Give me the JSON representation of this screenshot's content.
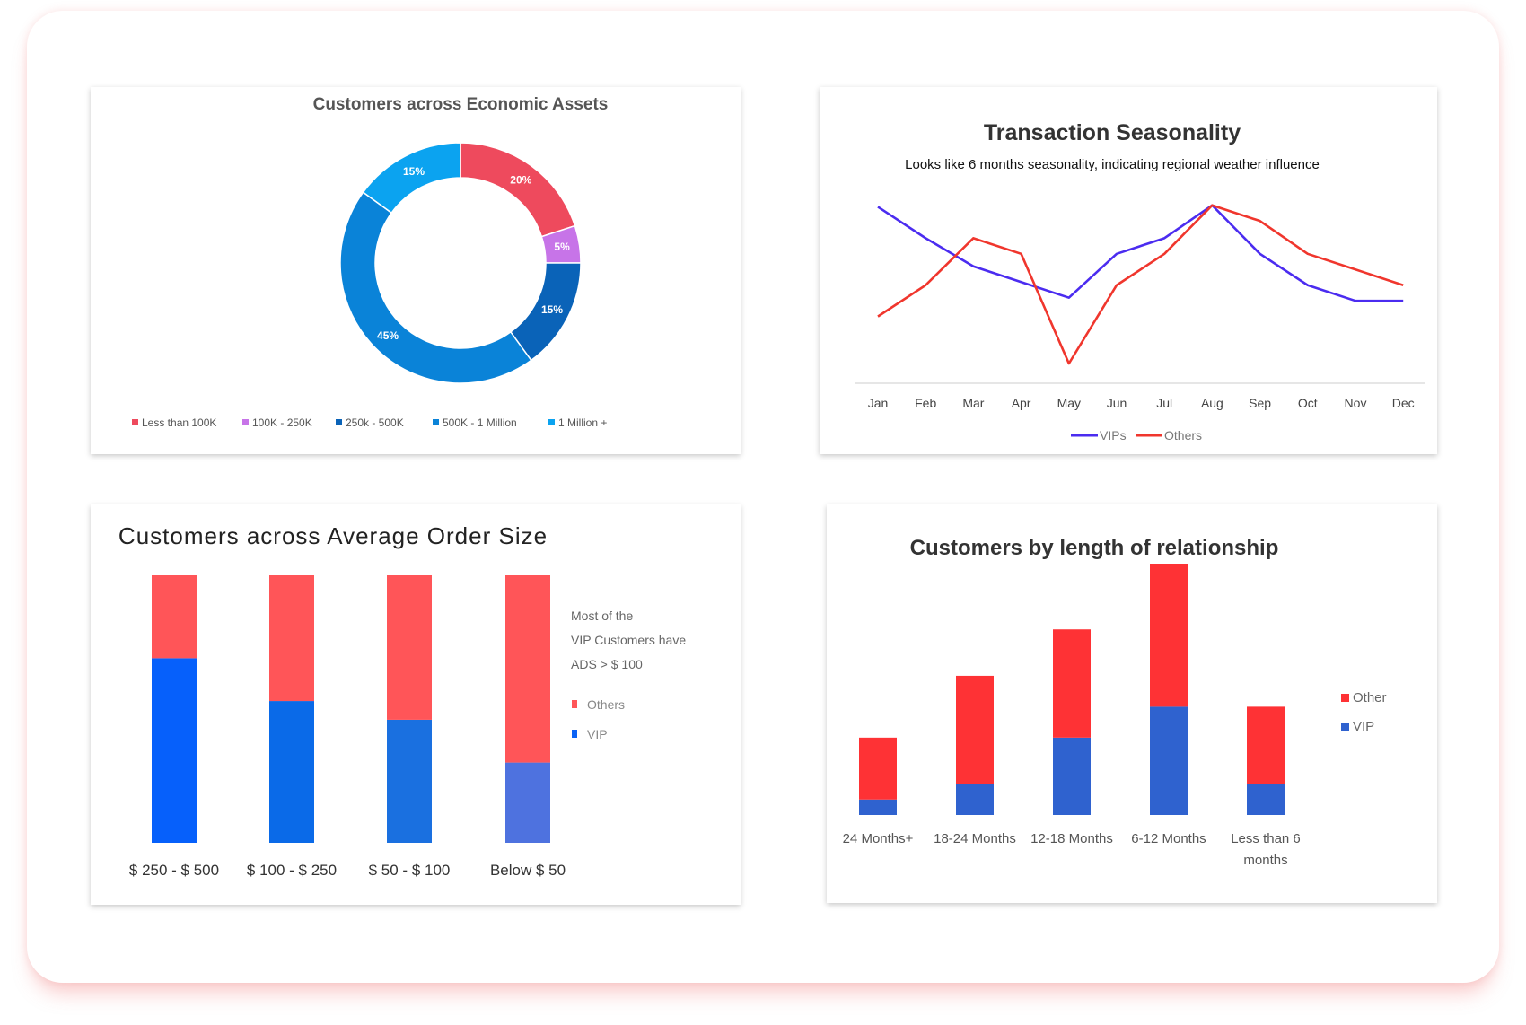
{
  "chart_data": [
    {
      "type": "pie",
      "title": "Customers across Economic Assets",
      "donut": true,
      "categories": [
        "Less than 100K",
        "100K - 250K",
        "250k - 500K",
        "500K - 1 Million",
        "1 Million +"
      ],
      "values": [
        20,
        5,
        15,
        45,
        15
      ],
      "labels": [
        "20%",
        "5%",
        "15%",
        "45%",
        "15%"
      ],
      "colors": [
        "#ee4a5d",
        "#c774e8",
        "#0a63b8",
        "#0a83d8",
        "#0ba3f0"
      ],
      "legend_position": "bottom"
    },
    {
      "type": "line",
      "title": "Transaction Seasonality",
      "subtitle": "Looks like 6 months seasonality, indicating regional weather influence",
      "categories": [
        "Jan",
        "Feb",
        "Mar",
        "Apr",
        "May",
        "Jun",
        "Jul",
        "Aug",
        "Sep",
        "Oct",
        "Nov",
        "Dec"
      ],
      "series": [
        {
          "name": "VIPs",
          "color": "#4b2cf0",
          "values": [
            100,
            80,
            62,
            52,
            42,
            70,
            80,
            101,
            70,
            50,
            40,
            40
          ]
        },
        {
          "name": "Others",
          "color": "#f0362d",
          "values": [
            30,
            50,
            80,
            70,
            0,
            50,
            70,
            101,
            91,
            70,
            60,
            50
          ]
        }
      ],
      "ylim": [
        0,
        110
      ],
      "grid": false,
      "legend_position": "bottom"
    },
    {
      "type": "bar",
      "stacked": true,
      "title": "Customers across Average Order Size",
      "categories": [
        "$ 250 - $ 500",
        "$ 100 - $ 250",
        "$ 50 - $ 100",
        "Below $ 50"
      ],
      "series": [
        {
          "name": "VIP",
          "color": "#0a62f5",
          "values": [
            69,
            53,
            46,
            30
          ],
          "bar_colors": [
            "#0660fb",
            "#0a6ae8",
            "#1a70e0",
            "#4e72df"
          ]
        },
        {
          "name": "Others",
          "color": "#ff5558",
          "values": [
            31,
            47,
            54,
            70
          ]
        }
      ],
      "ylim": [
        0,
        100
      ],
      "annotation": [
        "Most of the",
        "VIP Customers have",
        "ADS > $ 100"
      ],
      "legend_position": "right"
    },
    {
      "type": "bar",
      "stacked": true,
      "title": "Customers by length of relationship",
      "categories": [
        [
          "24 Months+"
        ],
        [
          "18-24 Months"
        ],
        [
          "12-18 Months"
        ],
        [
          "6-12 Months"
        ],
        [
          "Less than 6",
          "months"
        ]
      ],
      "series": [
        {
          "name": "VIP",
          "color": "#2f62cf",
          "values": [
            4,
            8,
            20,
            28,
            8
          ]
        },
        {
          "name": "Other",
          "color": "#fe3235",
          "values": [
            16,
            28,
            28,
            37,
            20
          ]
        }
      ],
      "ylim": [
        0,
        65
      ],
      "legend_position": "right"
    }
  ]
}
